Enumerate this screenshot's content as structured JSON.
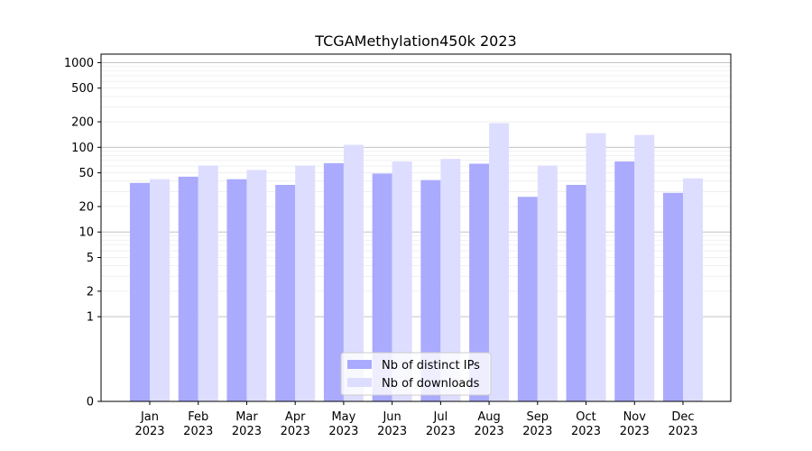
{
  "chart_data": {
    "type": "bar",
    "title": "TCGAMethylation450k 2023",
    "xlabel": "",
    "ylabel": "",
    "yscale": "symlog",
    "yticks": [
      0,
      1,
      2,
      5,
      10,
      20,
      50,
      100,
      200,
      500,
      1000
    ],
    "categories": [
      "Jan\n2023",
      "Feb\n2023",
      "Mar\n2023",
      "Apr\n2023",
      "May\n2023",
      "Jun\n2023",
      "Jul\n2023",
      "Aug\n2023",
      "Sep\n2023",
      "Oct\n2023",
      "Nov\n2023",
      "Dec\n2023"
    ],
    "series": [
      {
        "name": "Nb of distinct IPs",
        "color": "#aaaaff",
        "values": [
          38,
          45,
          42,
          36,
          65,
          49,
          41,
          64,
          26,
          36,
          68,
          29
        ]
      },
      {
        "name": "Nb of downloads",
        "color": "#ddddff",
        "values": [
          42,
          61,
          54,
          61,
          107,
          68,
          73,
          193,
          61,
          147,
          140,
          43
        ]
      }
    ],
    "grid": true,
    "legend_position": "bottom-center"
  }
}
